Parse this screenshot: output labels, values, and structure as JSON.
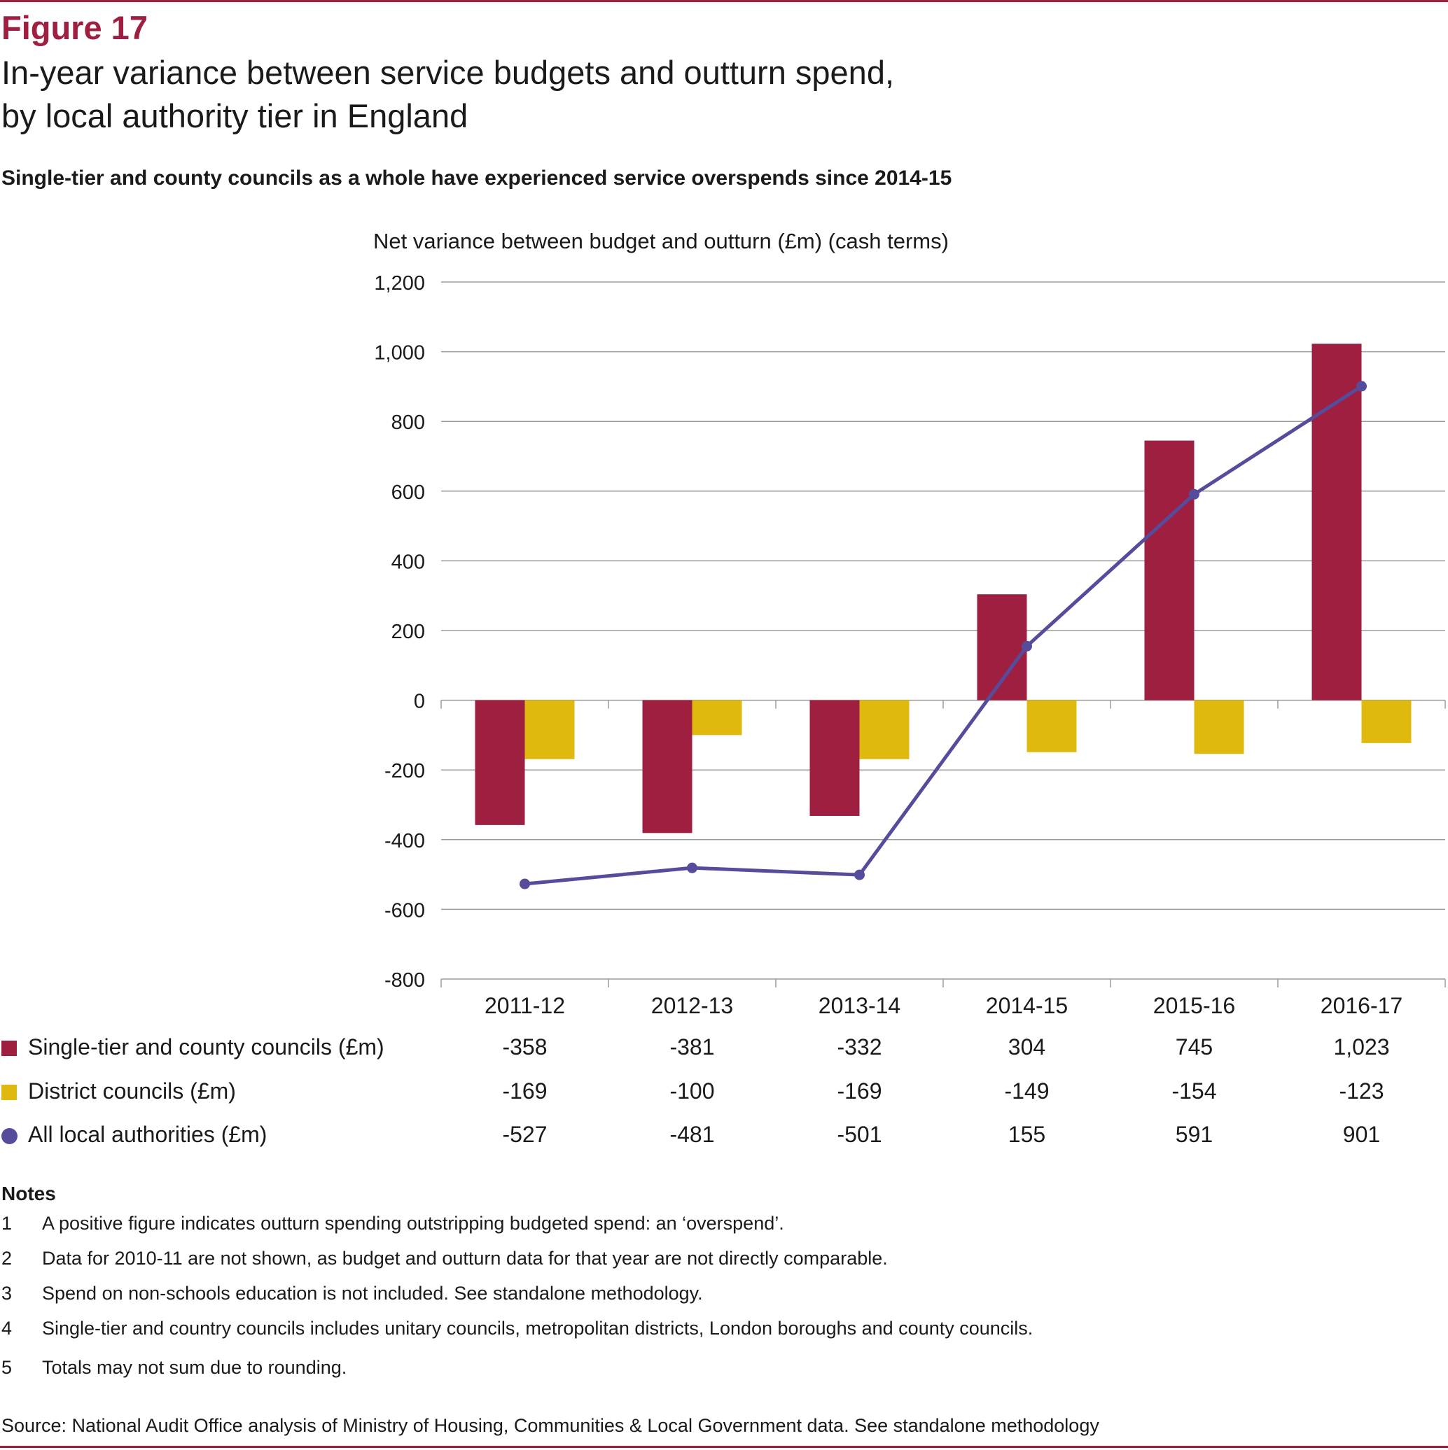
{
  "figure_label": "Figure 17",
  "title_lines": [
    "In-year variance between service budgets and outturn spend,",
    "by local authority tier in England"
  ],
  "subtitle": "Single-tier and county councils as a whole have experienced service overspends since 2014-15",
  "colors": {
    "brand": "#9e1f40",
    "single_tier": "#9e1f40",
    "district": "#e0b90e",
    "all": "#554c9c",
    "grid": "#9b9b9b"
  },
  "chart_data": {
    "type": "bar",
    "ylabel": "Net variance between budget and outturn (£m) (cash terms)",
    "ylim": [
      -800,
      1200
    ],
    "yticks": [
      1200,
      1000,
      800,
      600,
      400,
      200,
      0,
      -200,
      -400,
      -600,
      -800
    ],
    "ytick_labels": [
      "1,200",
      "1,000",
      "800",
      "600",
      "400",
      "200",
      "0",
      "-200",
      "-400",
      "-600",
      "-800"
    ],
    "grid": true,
    "categories": [
      "2011-12",
      "2012-13",
      "2013-14",
      "2014-15",
      "2015-16",
      "2016-17"
    ],
    "series": [
      {
        "name": "Single-tier and county councils (£m)",
        "type": "bar",
        "values": [
          -358,
          -381,
          -332,
          304,
          745,
          1023
        ],
        "labels": [
          "-358",
          "-381",
          "-332",
          "304",
          "745",
          "1,023"
        ]
      },
      {
        "name": "District councils (£m)",
        "type": "bar",
        "values": [
          -169,
          -100,
          -169,
          -149,
          -154,
          -123
        ],
        "labels": [
          "-169",
          "-100",
          "-169",
          "-149",
          "-154",
          "-123"
        ]
      },
      {
        "name": "All local authorities (£m)",
        "type": "line",
        "values": [
          -527,
          -481,
          -501,
          155,
          591,
          901
        ],
        "labels": [
          "-527",
          "-481",
          "-501",
          "155",
          "591",
          "901"
        ]
      }
    ]
  },
  "notes": {
    "heading": "Notes",
    "items": [
      {
        "num": "1",
        "text": "A positive figure indicates outturn spending outstripping budgeted spend: an ‘overspend’."
      },
      {
        "num": "2",
        "text": "Data for 2010-11 are not shown, as budget and outturn data for that year are not directly comparable."
      },
      {
        "num": "3",
        "text": "Spend on non-schools education is not included. See standalone methodology."
      },
      {
        "num": "4",
        "text": "Single-tier and country councils includes unitary councils, metropolitan districts, London boroughs and county councils."
      },
      {
        "num": "5",
        "text": "Totals may not sum due to rounding."
      }
    ]
  },
  "source": "Source: National Audit Office analysis of Ministry of Housing, Communities & Local Government data. See standalone methodology"
}
